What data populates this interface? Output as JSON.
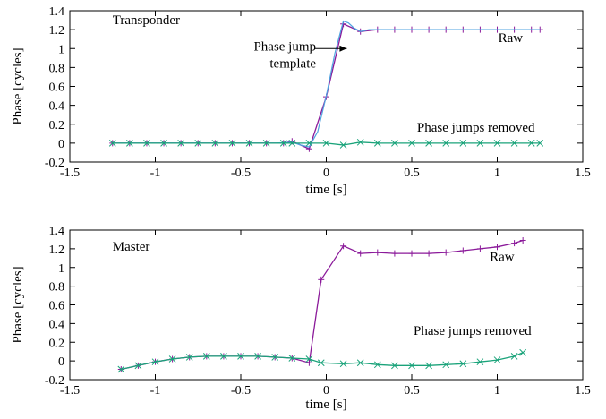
{
  "chart_data": [
    {
      "type": "line",
      "title": "",
      "xlabel": "time [s]",
      "ylabel": "Phase [cycles]",
      "xlim": [
        -1.5,
        1.5
      ],
      "ylim": [
        -0.2,
        1.4
      ],
      "xticks": [
        -1.5,
        -1,
        -0.5,
        0,
        0.5,
        1,
        1.5
      ],
      "yticks": [
        -0.2,
        0,
        0.2,
        0.4,
        0.6,
        0.8,
        1,
        1.2,
        1.4
      ],
      "grid": false,
      "annotations": {
        "panel": "Transponder",
        "raw": "Raw",
        "removed": "Phase jumps removed",
        "template_line1": "Phase jump",
        "template_line2": "template"
      },
      "series": [
        {
          "name": "Raw",
          "color": "#8b1a9a",
          "marker": "plus",
          "x": [
            -1.25,
            -1.15,
            -1.05,
            -0.95,
            -0.85,
            -0.75,
            -0.65,
            -0.55,
            -0.45,
            -0.35,
            -0.25,
            -0.2,
            -0.1,
            0.0,
            0.1,
            0.2,
            0.3,
            0.4,
            0.5,
            0.6,
            0.7,
            0.8,
            0.9,
            1.0,
            1.1,
            1.2,
            1.25
          ],
          "y": [
            0,
            0,
            0,
            0,
            0,
            0,
            0,
            0,
            0,
            0,
            0,
            0.02,
            -0.06,
            0.49,
            1.26,
            1.18,
            1.2,
            1.2,
            1.2,
            1.2,
            1.2,
            1.2,
            1.2,
            1.2,
            1.2,
            1.2,
            1.2
          ]
        },
        {
          "name": "Phase jump template",
          "color": "#4fa3e0",
          "marker": "none",
          "x": [
            -1.25,
            -0.3,
            -0.2,
            -0.15,
            -0.1,
            -0.05,
            0.0,
            0.05,
            0.1,
            0.13,
            0.16,
            0.2,
            0.25,
            0.3,
            1.25
          ],
          "y": [
            0,
            0,
            0.01,
            -0.02,
            -0.04,
            0.12,
            0.5,
            0.95,
            1.29,
            1.27,
            1.22,
            1.18,
            1.2,
            1.2,
            1.2
          ]
        },
        {
          "name": "Phase jumps removed",
          "color": "#1aa37a",
          "marker": "x",
          "x": [
            -1.25,
            -1.15,
            -1.05,
            -0.95,
            -0.85,
            -0.75,
            -0.65,
            -0.55,
            -0.45,
            -0.35,
            -0.25,
            -0.2,
            -0.1,
            0.0,
            0.1,
            0.2,
            0.3,
            0.4,
            0.5,
            0.6,
            0.7,
            0.8,
            0.9,
            1.0,
            1.1,
            1.2,
            1.25
          ],
          "y": [
            0,
            0,
            0,
            0,
            0,
            0,
            0,
            0,
            0,
            0,
            0,
            0,
            0,
            0,
            -0.02,
            0.01,
            0,
            0,
            0,
            0,
            0,
            0,
            0,
            0,
            0,
            0,
            0
          ]
        }
      ]
    },
    {
      "type": "line",
      "title": "",
      "xlabel": "time [s]",
      "ylabel": "Phase [cycles]",
      "xlim": [
        -1.5,
        1.5
      ],
      "ylim": [
        -0.2,
        1.4
      ],
      "xticks": [
        -1.5,
        -1,
        -0.5,
        0,
        0.5,
        1,
        1.5
      ],
      "yticks": [
        -0.2,
        0,
        0.2,
        0.4,
        0.6,
        0.8,
        1,
        1.2,
        1.4
      ],
      "grid": false,
      "annotations": {
        "panel": "Master",
        "raw": "Raw",
        "removed": "Phase jumps removed"
      },
      "series": [
        {
          "name": "Raw",
          "color": "#8b1a9a",
          "marker": "plus",
          "x": [
            -1.2,
            -1.1,
            -1.0,
            -0.9,
            -0.8,
            -0.7,
            -0.6,
            -0.5,
            -0.4,
            -0.3,
            -0.2,
            -0.1,
            -0.03,
            0.1,
            0.2,
            0.3,
            0.4,
            0.5,
            0.6,
            0.7,
            0.8,
            0.9,
            1.0,
            1.1,
            1.15
          ],
          "y": [
            -0.09,
            -0.05,
            -0.01,
            0.02,
            0.04,
            0.05,
            0.05,
            0.05,
            0.05,
            0.04,
            0.03,
            -0.02,
            0.87,
            1.23,
            1.15,
            1.16,
            1.15,
            1.15,
            1.15,
            1.16,
            1.18,
            1.2,
            1.22,
            1.26,
            1.29
          ]
        },
        {
          "name": "Phase jumps removed",
          "color": "#1aa37a",
          "marker": "x",
          "x": [
            -1.2,
            -1.1,
            -1.0,
            -0.9,
            -0.8,
            -0.7,
            -0.6,
            -0.5,
            -0.4,
            -0.3,
            -0.2,
            -0.1,
            -0.03,
            0.1,
            0.2,
            0.3,
            0.4,
            0.5,
            0.6,
            0.7,
            0.8,
            0.9,
            1.0,
            1.1,
            1.15
          ],
          "y": [
            -0.09,
            -0.05,
            -0.01,
            0.02,
            0.04,
            0.05,
            0.05,
            0.05,
            0.05,
            0.04,
            0.03,
            0.02,
            -0.02,
            -0.03,
            -0.02,
            -0.04,
            -0.05,
            -0.05,
            -0.05,
            -0.04,
            -0.03,
            -0.01,
            0.01,
            0.05,
            0.09
          ]
        }
      ]
    }
  ]
}
